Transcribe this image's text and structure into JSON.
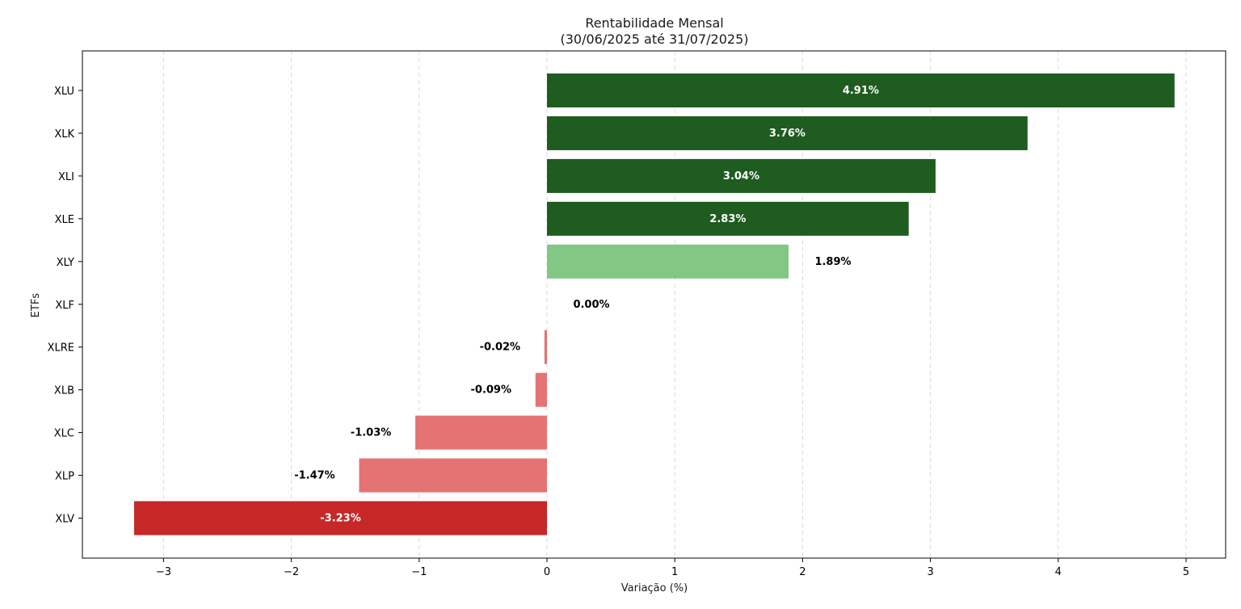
{
  "chart_data": {
    "type": "bar",
    "orientation": "horizontal",
    "title": "Rentabilidade Mensal",
    "subtitle": "(30/06/2025 até 31/07/2025)",
    "xlabel": "Variação (%)",
    "ylabel": "ETFs",
    "categories": [
      "XLU",
      "XLK",
      "XLI",
      "XLE",
      "XLY",
      "XLF",
      "XLRE",
      "XLB",
      "XLC",
      "XLP",
      "XLV"
    ],
    "values": [
      4.91,
      3.76,
      3.04,
      2.83,
      1.89,
      0.0,
      -0.02,
      -0.09,
      -1.03,
      -1.47,
      -3.23
    ],
    "data_labels": [
      "4.91%",
      "3.76%",
      "3.04%",
      "2.83%",
      "1.89%",
      "0.00%",
      "-0.02%",
      "-0.09%",
      "-1.03%",
      "-1.47%",
      "-3.23%"
    ],
    "bar_colors": [
      "#1e5c20",
      "#1e5c20",
      "#1e5c20",
      "#1e5c20",
      "#82c784",
      "#82c784",
      "#e57373",
      "#e57373",
      "#e57373",
      "#e57373",
      "#c62828"
    ],
    "label_colors": [
      "#ffffff",
      "#ffffff",
      "#ffffff",
      "#ffffff",
      "#000000",
      "#000000",
      "#000000",
      "#000000",
      "#000000",
      "#000000",
      "#ffffff"
    ],
    "label_inside": [
      true,
      true,
      true,
      true,
      false,
      false,
      false,
      false,
      false,
      false,
      true
    ],
    "xlim": [
      -3.6,
      5.3
    ],
    "xticks": [
      -3,
      -2,
      -1,
      0,
      1,
      2,
      3,
      4,
      5
    ],
    "xtick_labels": [
      "−3",
      "−2",
      "−1",
      "0",
      "1",
      "2",
      "3",
      "4",
      "5"
    ],
    "grid": "vertical dashed",
    "legend": "none"
  }
}
